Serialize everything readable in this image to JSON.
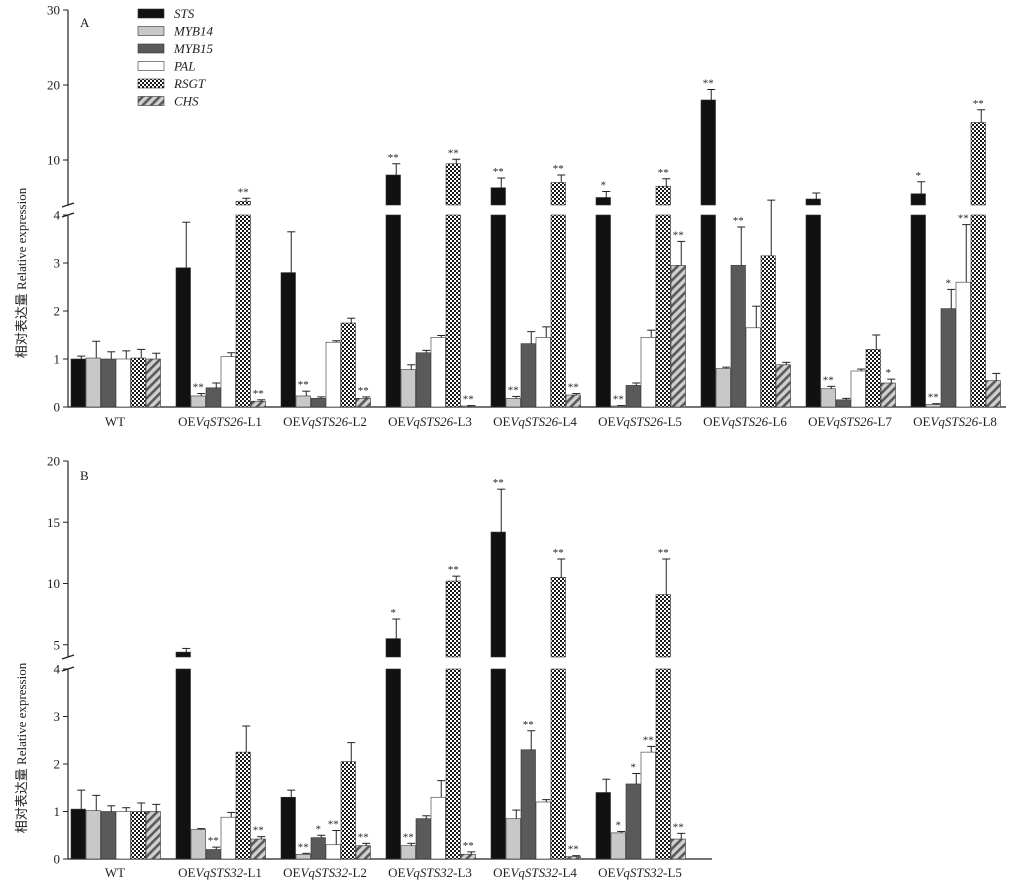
{
  "chart_data": [
    {
      "type": "bar",
      "panel_label": "A",
      "ylabel": "相对表达量 Relative expression",
      "axis_break": true,
      "lower_yticks": [
        "0",
        "1",
        "2",
        "3",
        "4"
      ],
      "upper_yticks": [
        "10",
        "20",
        "30"
      ],
      "legend": [
        {
          "name": "STS",
          "pattern": "solid-black"
        },
        {
          "name": "MYB14",
          "pattern": "solid-lightgray"
        },
        {
          "name": "MYB15",
          "pattern": "solid-darkgray"
        },
        {
          "name": "PAL",
          "pattern": "white"
        },
        {
          "name": "RSGT",
          "pattern": "checker"
        },
        {
          "name": "CHS",
          "pattern": "hatch"
        }
      ],
      "groups": [
        {
          "label": {
            "pre": "",
            "ital": "",
            "post": "WT"
          },
          "values": [
            1,
            1.02,
            1,
            1,
            1.02,
            1
          ],
          "errors": [
            0.06,
            0.35,
            0.15,
            0.17,
            0.18,
            0.12
          ],
          "sig": [
            "",
            "",
            "",
            "",
            "",
            ""
          ]
        },
        {
          "label": {
            "pre": "OE",
            "ital": "VqSTS26",
            "post": "-L1"
          },
          "values": [
            2.9,
            0.23,
            0.4,
            1.05,
            4.5,
            0.12
          ],
          "errors": [
            0.95,
            0.05,
            0.1,
            0.08,
            0.4,
            0.03
          ],
          "sig": [
            "",
            "**",
            "",
            "",
            "**",
            "**"
          ]
        },
        {
          "label": {
            "pre": "OE",
            "ital": "VqSTS26",
            "post": "-L2"
          },
          "values": [
            2.8,
            0.23,
            0.18,
            1.35,
            1.75,
            0.18
          ],
          "errors": [
            0.85,
            0.1,
            0.03,
            0.03,
            0.1,
            0.03
          ],
          "sig": [
            "",
            "**",
            "",
            "",
            "",
            "**"
          ]
        },
        {
          "label": {
            "pre": "OE",
            "ital": "VqSTS26",
            "post": "-L3"
          },
          "values": [
            8,
            0.78,
            1.13,
            1.45,
            9.5,
            0.02
          ],
          "errors": [
            1.5,
            0.1,
            0.05,
            0.04,
            0.6,
            0.01
          ],
          "sig": [
            "**",
            "",
            "",
            "",
            "**",
            "**"
          ]
        },
        {
          "label": {
            "pre": "OE",
            "ital": "VqSTS26",
            "post": "-L4"
          },
          "values": [
            6.3,
            0.18,
            1.32,
            1.45,
            7,
            0.25
          ],
          "errors": [
            1.3,
            0.04,
            0.25,
            0.22,
            1,
            0.03
          ],
          "sig": [
            "**",
            "**",
            "",
            "",
            "**",
            "**"
          ]
        },
        {
          "label": {
            "pre": "OE",
            "ital": "VqSTS26",
            "post": "-L5"
          },
          "values": [
            5,
            0.02,
            0.45,
            1.45,
            6.5,
            2.95
          ],
          "errors": [
            0.8,
            0.01,
            0.05,
            0.15,
            1,
            0.5
          ],
          "sig": [
            "*",
            "**",
            "",
            "",
            "**",
            "**"
          ]
        },
        {
          "label": {
            "pre": "OE",
            "ital": "VqSTS26",
            "post": "-L6"
          },
          "values": [
            18,
            0.8,
            2.95,
            1.65,
            3.15,
            0.88
          ],
          "errors": [
            1.4,
            0.03,
            0.8,
            0.45,
            1.5,
            0.05
          ],
          "sig": [
            "**",
            "",
            "**",
            "",
            "",
            ""
          ]
        },
        {
          "label": {
            "pre": "OE",
            "ital": "VqSTS26",
            "post": "-L7"
          },
          "values": [
            4.8,
            0.38,
            0.15,
            0.75,
            1.2,
            0.5
          ],
          "errors": [
            0.8,
            0.05,
            0.03,
            0.04,
            0.3,
            0.08
          ],
          "sig": [
            "",
            "**",
            "",
            "",
            "",
            "*"
          ]
        },
        {
          "label": {
            "pre": "OE",
            "ital": "VqSTS26",
            "post": "-L8"
          },
          "values": [
            5.5,
            0.05,
            2.05,
            2.6,
            15,
            0.55
          ],
          "errors": [
            1.6,
            0.02,
            0.4,
            1.2,
            1.7,
            0.15
          ],
          "sig": [
            "*",
            "**",
            "*",
            "**",
            "**",
            ""
          ]
        }
      ]
    },
    {
      "type": "bar",
      "panel_label": "B",
      "ylabel": "相对表达量 Relative expression",
      "axis_break": true,
      "lower_yticks": [
        "0",
        "1",
        "2",
        "3",
        "4"
      ],
      "upper_yticks": [
        "5",
        "10",
        "15",
        "20"
      ],
      "legend": [],
      "groups": [
        {
          "label": {
            "pre": "",
            "ital": "",
            "post": "WT"
          },
          "values": [
            1.05,
            1.02,
            1,
            1,
            1,
            1
          ],
          "errors": [
            0.4,
            0.32,
            0.12,
            0.08,
            0.18,
            0.15
          ],
          "sig": [
            "",
            "",
            "",
            "",
            "",
            ""
          ]
        },
        {
          "label": {
            "pre": "OE",
            "ital": "VqSTS32",
            "post": "-L1"
          },
          "values": [
            4.4,
            0.62,
            0.2,
            0.88,
            2.25,
            0.42
          ],
          "errors": [
            0.3,
            0.02,
            0.05,
            0.1,
            0.55,
            0.05
          ],
          "sig": [
            "",
            "",
            "**",
            "",
            "",
            "**"
          ]
        },
        {
          "label": {
            "pre": "OE",
            "ital": "VqSTS32",
            "post": "-L2"
          },
          "values": [
            1.3,
            0.1,
            0.45,
            0.3,
            2.05,
            0.28
          ],
          "errors": [
            0.15,
            0.02,
            0.05,
            0.3,
            0.4,
            0.05
          ],
          "sig": [
            "",
            "**",
            "*",
            "**",
            "",
            "**"
          ]
        },
        {
          "label": {
            "pre": "OE",
            "ital": "VqSTS32",
            "post": "-L3"
          },
          "values": [
            5.5,
            0.28,
            0.85,
            1.3,
            10.2,
            0.1
          ],
          "errors": [
            1.6,
            0.05,
            0.06,
            0.35,
            0.4,
            0.05
          ],
          "sig": [
            "*",
            "**",
            "",
            "",
            "**",
            "**"
          ]
        },
        {
          "label": {
            "pre": "OE",
            "ital": "VqSTS32",
            "post": "-L4"
          },
          "values": [
            14.2,
            0.85,
            2.3,
            1.2,
            10.5,
            0.05
          ],
          "errors": [
            3.5,
            0.18,
            0.4,
            0.05,
            1.5,
            0.02
          ],
          "sig": [
            "**",
            "",
            "**",
            "",
            "**",
            "**"
          ]
        },
        {
          "label": {
            "pre": "OE",
            "ital": "VqSTS32",
            "post": "-L5"
          },
          "values": [
            1.4,
            0.55,
            1.58,
            2.25,
            9.1,
            0.42
          ],
          "errors": [
            0.28,
            0.03,
            0.22,
            0.12,
            2.9,
            0.12
          ],
          "sig": [
            "",
            "*",
            "*",
            "**",
            "**",
            "**"
          ]
        }
      ]
    }
  ]
}
